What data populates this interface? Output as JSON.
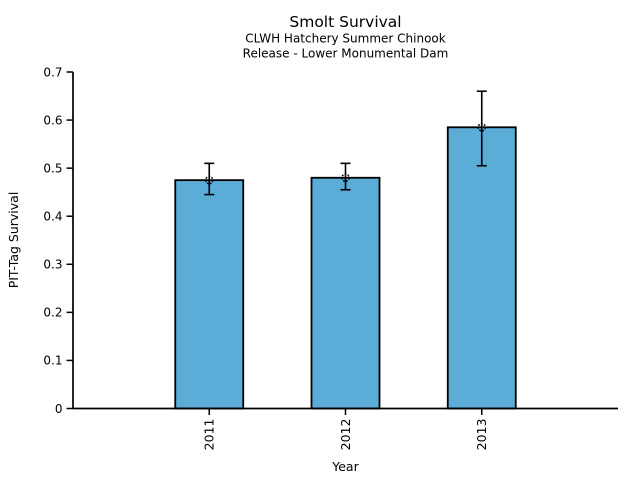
{
  "chart_data": {
    "type": "bar",
    "title": "Smolt Survival",
    "subtitle": [
      "CLWH Hatchery Summer Chinook",
      "Release - Lower Monumental Dam"
    ],
    "xlabel": "Year",
    "ylabel": "PIT-Tag Survival",
    "categories": [
      "2011",
      "2012",
      "2013"
    ],
    "values": [
      0.475,
      0.48,
      0.585
    ],
    "error_bars": {
      "low": [
        0.445,
        0.455,
        0.505
      ],
      "high": [
        0.51,
        0.51,
        0.66
      ]
    },
    "ylim": [
      0,
      0.7
    ],
    "yticks": [
      0,
      0.1,
      0.2,
      0.3,
      0.4,
      0.5,
      0.6,
      0.7
    ],
    "ytick_labels": [
      "0",
      "0.1",
      "0.2",
      "0.3",
      "0.4",
      "0.5",
      "0.6",
      "0.7"
    ],
    "xtick_rotation_deg": 90,
    "grid": false,
    "legend": null,
    "bar_color": "#5BACD7",
    "bar_edge_color": "#000000",
    "error_color": "#000000",
    "marker": "open-circle-dotted",
    "background_color": "#FFFFFF"
  }
}
